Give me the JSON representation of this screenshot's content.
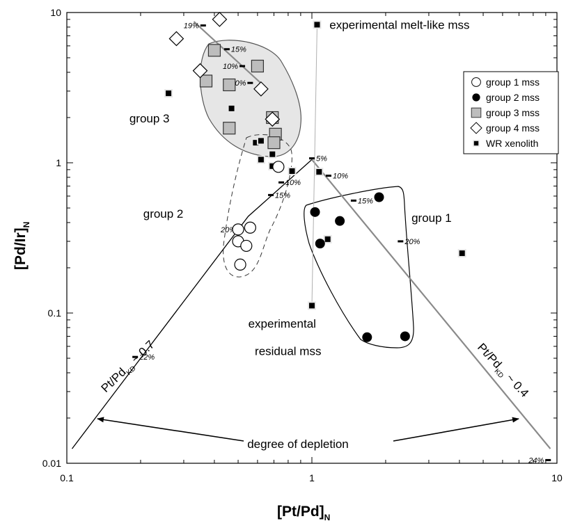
{
  "chart_data": {
    "type": "scatter",
    "xscale": "log",
    "yscale": "log",
    "xlim": [
      0.1,
      10
    ],
    "ylim": [
      0.01,
      10
    ],
    "xlabel": "[Pt/Pd]",
    "xlabel_sub": "N",
    "ylabel": "[Pd/Ir]",
    "ylabel_sub": "N",
    "xticks": [
      {
        "value": 0.1,
        "label": "0.1"
      },
      {
        "value": 1,
        "label": "1"
      },
      {
        "value": 10,
        "label": "10"
      }
    ],
    "yticks": [
      {
        "value": 0.01,
        "label": "0.01"
      },
      {
        "value": 0.1,
        "label": "0.1"
      },
      {
        "value": 1,
        "label": "1"
      },
      {
        "value": 10,
        "label": "10"
      }
    ],
    "legend_position": "top-right",
    "series": [
      {
        "name": "group 1 mss",
        "marker": "circle-open",
        "points": [
          [
            0.73,
            0.94
          ],
          [
            0.5,
            0.36
          ],
          [
            0.56,
            0.37
          ],
          [
            0.5,
            0.3
          ],
          [
            0.54,
            0.28
          ],
          [
            0.51,
            0.21
          ]
        ]
      },
      {
        "name": "group 2 mss",
        "marker": "circle-filled",
        "points": [
          [
            1.03,
            0.47
          ],
          [
            1.88,
            0.59
          ],
          [
            1.3,
            0.41
          ],
          [
            1.08,
            0.29
          ],
          [
            1.68,
            0.069
          ],
          [
            2.4,
            0.07
          ]
        ]
      },
      {
        "name": "group 3 mss",
        "marker": "square-gray",
        "points": [
          [
            0.4,
            5.6
          ],
          [
            0.6,
            4.4
          ],
          [
            0.37,
            3.5
          ],
          [
            0.46,
            3.3
          ],
          [
            0.69,
            2.0
          ],
          [
            0.46,
            1.7
          ],
          [
            0.71,
            1.55
          ],
          [
            0.7,
            1.36
          ]
        ]
      },
      {
        "name": "group 4 mss",
        "marker": "diamond-open",
        "points": [
          [
            0.42,
            9.0
          ],
          [
            0.28,
            6.7
          ],
          [
            0.35,
            4.1
          ],
          [
            0.62,
            3.1
          ],
          [
            0.69,
            1.95
          ]
        ]
      },
      {
        "name": "WR xenolith",
        "marker": "square-black-small",
        "points": [
          [
            0.26,
            2.9
          ],
          [
            0.47,
            2.3
          ],
          [
            0.59,
            1.36
          ],
          [
            0.62,
            1.4
          ],
          [
            0.69,
            1.14
          ],
          [
            0.62,
            1.05
          ],
          [
            0.69,
            0.95
          ],
          [
            0.83,
            0.88
          ],
          [
            1.07,
            0.87
          ],
          [
            1.16,
            0.31
          ],
          [
            4.1,
            0.25
          ],
          [
            1.0,
            0.112
          ],
          [
            1.05,
            8.3
          ]
        ]
      }
    ],
    "trend_lines": [
      {
        "name": "Pt/Pd KD ~ 0.7",
        "label": "Pt/Pd",
        "label_sub": "KD",
        "label_suffix": " ~ 0.7",
        "color": "#000000",
        "points": [
          [
            0.105,
            0.0125
          ],
          [
            0.55,
            0.44
          ],
          [
            1.0,
            1.05
          ]
        ]
      },
      {
        "name": "Pt/Pd KD ~ 0.4",
        "label": "Pt/Pd",
        "label_sub": "KD",
        "label_suffix": " ~ 0.4",
        "color": "#8a8a8a",
        "points": [
          [
            1.0,
            1.05
          ],
          [
            9.4,
            0.0125
          ]
        ]
      },
      {
        "name": "group 3 trend",
        "color": "#8a8a8a",
        "points": [
          [
            0.33,
            8.7
          ],
          [
            0.63,
            3.3
          ]
        ]
      },
      {
        "name": "mss tie line",
        "color": "#b0b0b0",
        "points": [
          [
            1.0,
            0.112
          ],
          [
            1.05,
            8.3
          ]
        ]
      }
    ],
    "percent_marks": [
      {
        "text": "19%",
        "x": 0.36,
        "y": 8.2,
        "side": "left"
      },
      {
        "text": "15%",
        "x": 0.45,
        "y": 5.7,
        "side": "right"
      },
      {
        "text": "10%",
        "x": 0.52,
        "y": 4.4,
        "side": "left"
      },
      {
        "text": "0%",
        "x": 0.56,
        "y": 3.4,
        "side": "left"
      },
      {
        "text": "5%",
        "x": 1.0,
        "y": 1.07,
        "side": "right"
      },
      {
        "text": "10%",
        "x": 0.75,
        "y": 0.74,
        "side": "right"
      },
      {
        "text": "15%",
        "x": 0.68,
        "y": 0.61,
        "side": "right"
      },
      {
        "text": "20%",
        "x": 0.51,
        "y": 0.36,
        "side": "left"
      },
      {
        "text": "22%",
        "x": 0.19,
        "y": 0.051,
        "side": "right"
      },
      {
        "text": "10%",
        "x": 1.17,
        "y": 0.82,
        "side": "right"
      },
      {
        "text": "15%",
        "x": 1.48,
        "y": 0.56,
        "side": "right"
      },
      {
        "text": "20%",
        "x": 2.3,
        "y": 0.3,
        "side": "right"
      },
      {
        "text": "24%",
        "x": 9.2,
        "y": 0.0105,
        "side": "left"
      }
    ],
    "annotations": [
      {
        "text": "experimental melt-like mss",
        "x": 1.18,
        "y": 8.3
      },
      {
        "text": "group 3",
        "x": 0.18,
        "y": 1.98
      },
      {
        "text": "group 2",
        "x": 0.205,
        "y": 0.46
      },
      {
        "text": "group 1",
        "x": 2.55,
        "y": 0.43
      },
      {
        "text": "experimental",
        "x": 0.55,
        "y": 0.085
      },
      {
        "text": "residual mss",
        "x": 0.585,
        "y": 0.056
      },
      {
        "text": "degree of depletion",
        "x": 0.545,
        "y": 0.0135
      }
    ]
  }
}
